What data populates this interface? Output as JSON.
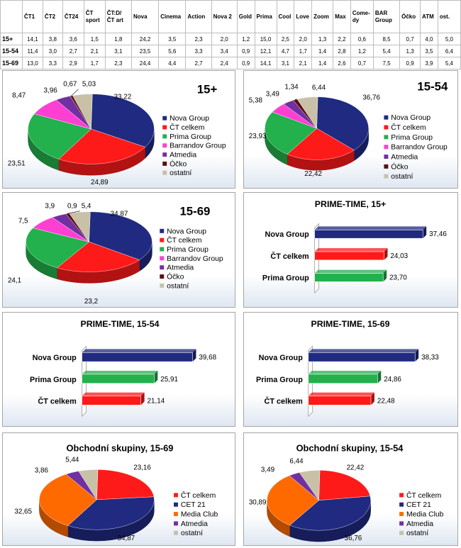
{
  "table": {
    "headers": [
      "",
      "ČT1",
      "ČT2",
      "ČT24",
      "ČT sport",
      "ČT:D/ ČT art",
      "Nova",
      "Cinema",
      "Action",
      "Nova 2",
      "Gold",
      "Prima",
      "Cool",
      "Love",
      "Zoom",
      "Max",
      "Come-dy",
      "BAR Group",
      "Óčko",
      "ATM",
      "ost."
    ],
    "rows": [
      [
        "15+",
        "14,1",
        "3,8",
        "3,6",
        "1,5",
        "1,8",
        "24,2",
        "3,5",
        "2,3",
        "2,0",
        "1,2",
        "15,0",
        "2,5",
        "2,0",
        "1,3",
        "2,2",
        "0,6",
        "8,5",
        "0,7",
        "4,0",
        "5,0"
      ],
      [
        "15-54",
        "11,4",
        "3,0",
        "2,7",
        "2,1",
        "3,1",
        "23,5",
        "5,6",
        "3,3",
        "3,4",
        "0,9",
        "12,1",
        "4,7",
        "1,7",
        "1,4",
        "2,8",
        "1,2",
        "5,4",
        "1,3",
        "3,5",
        "6,4"
      ],
      [
        "15-69",
        "13,0",
        "3,3",
        "2,9",
        "1,7",
        "2,3",
        "24,4",
        "4,4",
        "2,7",
        "2,4",
        "0,9",
        "14,1",
        "3,1",
        "2,1",
        "1,4",
        "2,6",
        "0,7",
        "7,5",
        "0,9",
        "3,9",
        "5,4"
      ]
    ]
  },
  "colors": {
    "nova": "#1f2a80",
    "ct": "#ff1a1a",
    "prima": "#22b14c",
    "barrandov": "#ff3fd2",
    "atmedia": "#7030a0",
    "ocko": "#5a0f0f",
    "ostatni": "#c9c0a8",
    "cet21": "#1f2a80",
    "mediaclub": "#ff6a00"
  },
  "chart_data": [
    {
      "type": "pie",
      "title": "15+",
      "slices": [
        {
          "name": "Nova Group",
          "value": 33.22,
          "label": "33,22",
          "color_key": "nova"
        },
        {
          "name": "ČT celkem",
          "value": 24.89,
          "label": "24,89",
          "color_key": "ct"
        },
        {
          "name": "Prima Group",
          "value": 23.51,
          "label": "23,51",
          "color_key": "prima"
        },
        {
          "name": "Barrandov Group",
          "value": 8.47,
          "label": "8,47",
          "color_key": "barrandov"
        },
        {
          "name": "Atmedia",
          "value": 3.96,
          "label": "3,96",
          "color_key": "atmedia"
        },
        {
          "name": "Óčko",
          "value": 0.67,
          "label": "0,67",
          "color_key": "ocko"
        },
        {
          "name": "ostatní",
          "value": 5.03,
          "label": "5,03",
          "color_key": "ostatni"
        }
      ]
    },
    {
      "type": "pie",
      "title": "15-54",
      "slices": [
        {
          "name": "Nova Group",
          "value": 36.76,
          "label": "36,76",
          "color_key": "nova"
        },
        {
          "name": "ČT celkem",
          "value": 22.42,
          "label": "22,42",
          "color_key": "ct"
        },
        {
          "name": "Prima Group",
          "value": 23.93,
          "label": "23,93",
          "color_key": "prima"
        },
        {
          "name": "Barrandov Group",
          "value": 5.38,
          "label": "5,38",
          "color_key": "barrandov"
        },
        {
          "name": "Atmedia",
          "value": 3.49,
          "label": "3,49",
          "color_key": "atmedia"
        },
        {
          "name": "Óčko",
          "value": 1.34,
          "label": "1,34",
          "color_key": "ocko"
        },
        {
          "name": "ostatní",
          "value": 6.44,
          "label": "6,44",
          "color_key": "ostatni"
        }
      ]
    },
    {
      "type": "pie",
      "title": "15-69",
      "slices": [
        {
          "name": "Nova Group",
          "value": 34.87,
          "label": "34,87",
          "color_key": "nova"
        },
        {
          "name": "ČT celkem",
          "value": 23.2,
          "label": "23,2",
          "color_key": "ct"
        },
        {
          "name": "Prima Group",
          "value": 24.1,
          "label": "24,1",
          "color_key": "prima"
        },
        {
          "name": "Barrandov Group",
          "value": 7.5,
          "label": "7,5",
          "color_key": "barrandov"
        },
        {
          "name": "Atmedia",
          "value": 3.9,
          "label": "3,9",
          "color_key": "atmedia"
        },
        {
          "name": "Óčko",
          "value": 0.9,
          "label": "0,9",
          "color_key": "ocko"
        },
        {
          "name": "ostatní",
          "value": 5.4,
          "label": "5,4",
          "color_key": "ostatni"
        }
      ]
    },
    {
      "type": "bar",
      "title": "PRIME-TIME, 15+",
      "categories": [
        "Nova Group",
        "ČT celkem",
        "Prima Group"
      ],
      "values": [
        37.46,
        24.03,
        23.7
      ],
      "labels": [
        "37,46",
        "24,03",
        "23,70"
      ],
      "color_keys": [
        "nova",
        "ct",
        "prima"
      ]
    },
    {
      "type": "bar",
      "title": "PRIME-TIME, 15-54",
      "categories": [
        "Nova Group",
        "Prima Group",
        "ČT celkem"
      ],
      "values": [
        39.68,
        25.91,
        21.14
      ],
      "labels": [
        "39,68",
        "25,91",
        "21,14"
      ],
      "color_keys": [
        "nova",
        "prima",
        "ct"
      ]
    },
    {
      "type": "bar",
      "title": "PRIME-TIME, 15-69",
      "categories": [
        "Nova Group",
        "Prima Group",
        "ČT celkem"
      ],
      "values": [
        38.33,
        24.86,
        22.48
      ],
      "labels": [
        "38,33",
        "24,86",
        "22,48"
      ],
      "color_keys": [
        "nova",
        "prima",
        "ct"
      ]
    },
    {
      "type": "pie",
      "title": "Obchodní skupiny, 15-69",
      "slices": [
        {
          "name": "ČT celkem",
          "value": 23.16,
          "label": "23,16",
          "color_key": "ct"
        },
        {
          "name": "CET 21",
          "value": 34.87,
          "label": "34,87",
          "color_key": "cet21"
        },
        {
          "name": "Media Club",
          "value": 32.65,
          "label": "32,65",
          "color_key": "mediaclub"
        },
        {
          "name": "Atmedia",
          "value": 3.86,
          "label": "3,86",
          "color_key": "atmedia"
        },
        {
          "name": "ostatní",
          "value": 5.44,
          "label": "5,44",
          "color_key": "ostatni"
        }
      ]
    },
    {
      "type": "pie",
      "title": "Obchodní skupiny, 15-54",
      "slices": [
        {
          "name": "ČT celkem",
          "value": 22.42,
          "label": "22,42",
          "color_key": "ct"
        },
        {
          "name": "CET 21",
          "value": 36.76,
          "label": "36,76",
          "color_key": "cet21"
        },
        {
          "name": "Media Club",
          "value": 30.89,
          "label": "30,89",
          "color_key": "mediaclub"
        },
        {
          "name": "Atmedia",
          "value": 3.49,
          "label": "3,49",
          "color_key": "atmedia"
        },
        {
          "name": "ostatní",
          "value": 6.44,
          "label": "6,44",
          "color_key": "ostatni"
        }
      ]
    }
  ]
}
